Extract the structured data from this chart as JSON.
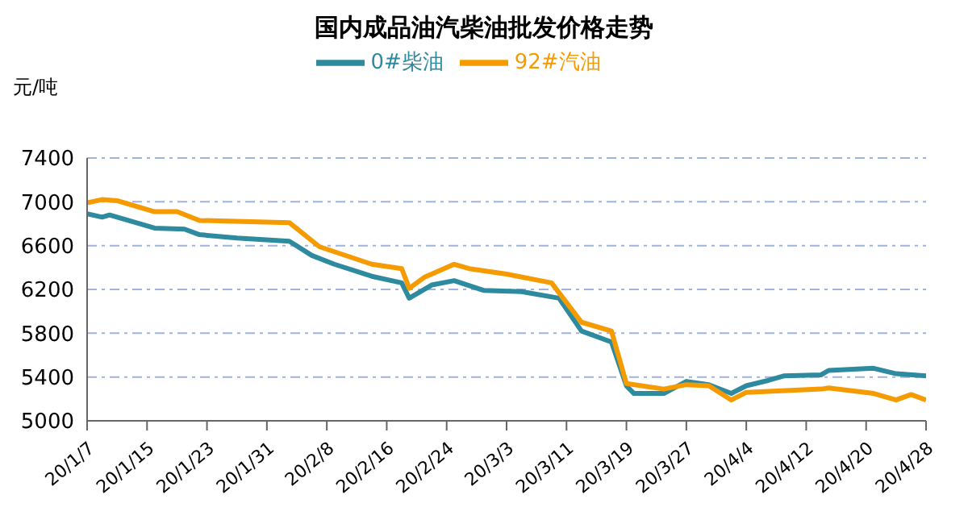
{
  "chart_data": {
    "type": "line",
    "title": "国内成品油汽柴油批发价格走势",
    "ylabel": "元/吨",
    "xlim": [
      "--01-07",
      "--04-28"
    ],
    "xticks": [
      {
        "value": "--01-07",
        "label": "20/1/7"
      },
      {
        "value": "--01-15",
        "label": "20/1/15"
      },
      {
        "value": "--01-23",
        "label": "20/1/23"
      },
      {
        "value": "--01-31",
        "label": "20/1/31"
      },
      {
        "value": "--02-08",
        "label": "20/2/8"
      },
      {
        "value": "--02-16",
        "label": "20/2/16"
      },
      {
        "value": "--02-24",
        "label": "20/2/24"
      },
      {
        "value": "--03-03",
        "label": "20/3/3"
      },
      {
        "value": "--03-11",
        "label": "20/3/11"
      },
      {
        "value": "--03-19",
        "label": "20/3/19"
      },
      {
        "value": "--03-27",
        "label": "20/3/27"
      },
      {
        "value": "--04-04",
        "label": "20/4/4"
      },
      {
        "value": "--04-12",
        "label": "20/4/12"
      },
      {
        "value": "--04-20",
        "label": "20/4/20"
      },
      {
        "value": "--04-28",
        "label": "20/4/28"
      }
    ],
    "ylim": [
      5000,
      7400
    ],
    "yticks": [
      5000,
      5400,
      5800,
      6200,
      6600,
      7000,
      7400
    ],
    "grid": "y",
    "legend": "top",
    "marker": "none",
    "line_style": "solid",
    "series": [
      {
        "name": "0#柴油",
        "color": "#2e8a9e",
        "x": [
          "--01-07",
          "--01-09",
          "--01-10",
          "--01-16",
          "--01-20",
          "--01-22",
          "--01-27",
          "--02-03",
          "--02-06",
          "--02-09",
          "--02-14",
          "--02-18",
          "--02-19",
          "--02-22",
          "--02-25",
          "--02-29",
          "--03-05",
          "--03-10",
          "--03-13",
          "--03-17",
          "--03-19",
          "--03-20",
          "--03-24",
          "--03-27",
          "--03-30",
          "--04-02",
          "--04-04",
          "--04-07",
          "--04-09",
          "--04-14",
          "--04-15",
          "--04-21",
          "--04-24",
          "--04-28"
        ],
        "values": [
          6890,
          6860,
          6880,
          6760,
          6750,
          6700,
          6670,
          6640,
          6510,
          6430,
          6320,
          6260,
          6120,
          6240,
          6280,
          6190,
          6180,
          6120,
          5820,
          5720,
          5320,
          5250,
          5250,
          5360,
          5330,
          5250,
          5320,
          5370,
          5410,
          5420,
          5460,
          5480,
          5430,
          5410
        ]
      },
      {
        "name": "92#汽油",
        "color": "#f59b00",
        "x": [
          "--01-07",
          "--01-09",
          "--01-11",
          "--01-16",
          "--01-19",
          "--01-22",
          "--02-03",
          "--02-07",
          "--02-14",
          "--02-18",
          "--02-19",
          "--02-21",
          "--02-25",
          "--02-27",
          "--03-03",
          "--03-09",
          "--03-13",
          "--03-17",
          "--03-19",
          "--03-24",
          "--03-27",
          "--03-30",
          "--04-02",
          "--04-04",
          "--04-14",
          "--04-15",
          "--04-21",
          "--04-24",
          "--04-26",
          "--04-28"
        ],
        "values": [
          6990,
          7020,
          7010,
          6910,
          6910,
          6830,
          6810,
          6590,
          6430,
          6390,
          6210,
          6310,
          6430,
          6390,
          6340,
          6260,
          5900,
          5820,
          5340,
          5290,
          5330,
          5320,
          5190,
          5260,
          5290,
          5300,
          5250,
          5190,
          5240,
          5190
        ]
      }
    ]
  }
}
